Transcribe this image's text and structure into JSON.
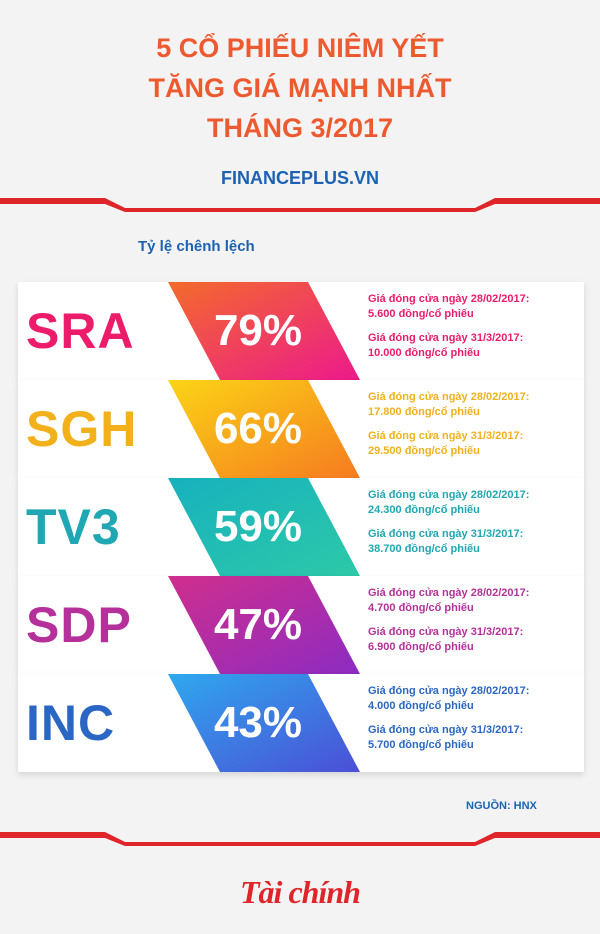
{
  "title": {
    "line1": "5 CỔ PHIẾU NIÊM YẾT",
    "line2": "TĂNG GIÁ MẠNH NHẤT",
    "line3": "THÁNG 3/2017"
  },
  "site": "FINANCEPLUS.VN",
  "ratio_label": "Tỷ lệ chênh lệch",
  "stocks": [
    {
      "ticker": "SRA",
      "percent": "79%",
      "label_prev": "Giá đóng cửa ngày 28/02/2017:",
      "price_prev": "5.600 đồng/cổ phiếu",
      "label_curr": "Giá đóng cửa ngày 31/3/2017:",
      "price_curr": "10.000 đồng/cổ phiếu",
      "color": "#ec1c6b",
      "grad_start": "#f36b2b",
      "grad_end": "#ec1a8c"
    },
    {
      "ticker": "SGH",
      "percent": "66%",
      "label_prev": "Giá đóng cửa ngày 28/02/2017:",
      "price_prev": "17.800 đồng/cổ phiếu",
      "label_curr": "Giá đóng cửa ngày 31/3/2017:",
      "price_curr": "29.500 đồng/cổ phiếu",
      "color": "#f2b01b",
      "grad_start": "#fbd416",
      "grad_end": "#f57b20"
    },
    {
      "ticker": "TV3",
      "percent": "59%",
      "label_prev": "Giá đóng cửa ngày 28/02/2017:",
      "price_prev": "24.300 đồng/cổ phiếu",
      "label_curr": "Giá đóng cửa ngày 31/3/2017:",
      "price_curr": "38.700 đồng/cổ phiếu",
      "color": "#1fa7b4",
      "grad_start": "#17b1be",
      "grad_end": "#2dc9a8"
    },
    {
      "ticker": "SDP",
      "percent": "47%",
      "label_prev": "Giá đóng cửa ngày 28/02/2017:",
      "price_prev": "4.700 đồng/cổ phiếu",
      "label_curr": "Giá đóng cửa ngày 31/3/2017:",
      "price_curr": "6.900 đồng/cổ phiếu",
      "color": "#b6309b",
      "grad_start": "#d02e8c",
      "grad_end": "#8c2cc2"
    },
    {
      "ticker": "INC",
      "percent": "43%",
      "label_prev": "Giá đóng cửa ngày 28/02/2017:",
      "price_prev": "4.000 đồng/cổ phiếu",
      "label_curr": "Giá đóng cửa ngày 31/3/2017:",
      "price_curr": "5.700 đồng/cổ phiếu",
      "color": "#2a67c4",
      "grad_start": "#2fa8ee",
      "grad_end": "#4b4fd6"
    }
  ],
  "source": "NGUỒN: HNX",
  "logo": "Tài chính",
  "colors": {
    "title": "#ee5a2f",
    "accent_blue": "#1b62b5",
    "red": "#e0252a"
  }
}
